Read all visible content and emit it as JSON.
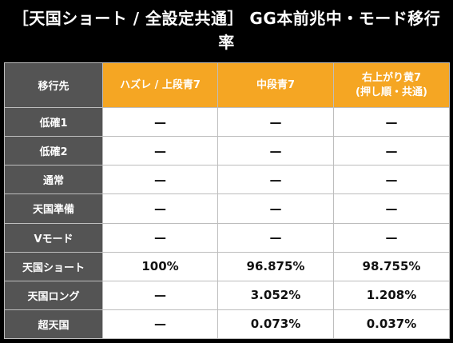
{
  "title": "［天国ショート / 全設定共通］ GG本前兆中・モード移行率",
  "table": {
    "corner": "移行先",
    "columns": [
      "ハズレ / 上段青7",
      "中段青7",
      "右上がり黄7\n(押し順・共通)"
    ],
    "rows": [
      {
        "label": "低確1",
        "values": [
          "—",
          "—",
          "—"
        ]
      },
      {
        "label": "低確2",
        "values": [
          "—",
          "—",
          "—"
        ]
      },
      {
        "label": "通常",
        "values": [
          "—",
          "—",
          "—"
        ]
      },
      {
        "label": "天国準備",
        "values": [
          "—",
          "—",
          "—"
        ]
      },
      {
        "label": "Vモード",
        "values": [
          "—",
          "—",
          "—"
        ]
      },
      {
        "label": "天国ショート",
        "values": [
          "100%",
          "96.875%",
          "98.755%"
        ]
      },
      {
        "label": "天国ロング",
        "values": [
          "—",
          "3.052%",
          "1.208%"
        ]
      },
      {
        "label": "超天国",
        "values": [
          "—",
          "0.073%",
          "0.037%"
        ]
      }
    ]
  },
  "colors": {
    "header_orange": "#f5a623",
    "row_header_gray": "#545454",
    "background_black": "#000000"
  }
}
